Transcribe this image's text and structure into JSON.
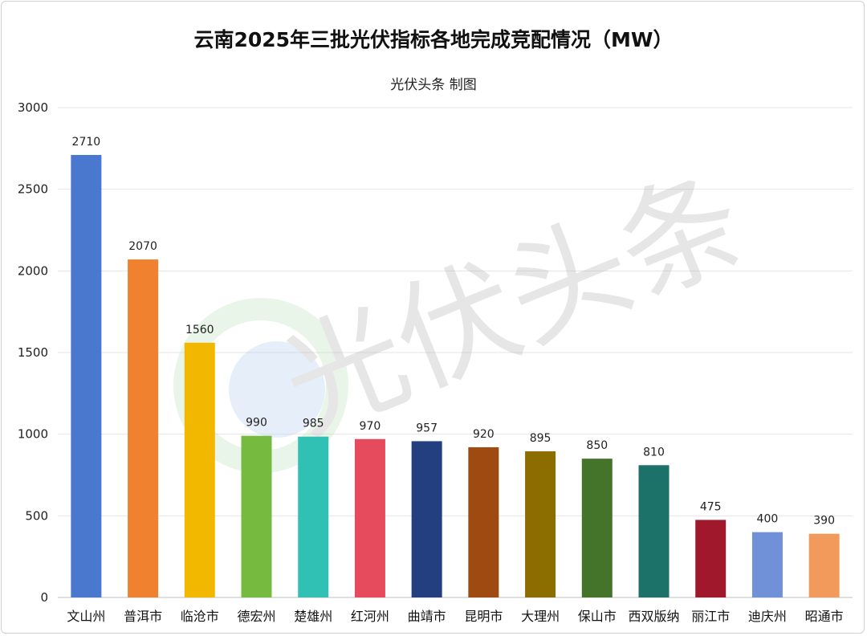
{
  "chart_data": {
    "type": "bar",
    "title": "云南2025年三批光伏指标各地完成竞配情况（MW）",
    "subtitle": "光伏头条 制图",
    "xlabel": "",
    "ylabel": "",
    "ylim": [
      0,
      3000
    ],
    "yticks": [
      0,
      500,
      1000,
      1500,
      2000,
      2500,
      3000
    ],
    "grid": true,
    "legend": "none",
    "categories": [
      "文山州",
      "普洱市",
      "临沧市",
      "德宏州",
      "楚雄州",
      "红河州",
      "曲靖市",
      "昆明市",
      "大理州",
      "保山市",
      "西双版纳",
      "丽江市",
      "迪庆州",
      "昭通市"
    ],
    "values": [
      2710,
      2070,
      1560,
      990,
      985,
      970,
      957,
      920,
      895,
      850,
      810,
      475,
      400,
      390
    ],
    "colors": [
      "#4a78cf",
      "#f0812e",
      "#f2b800",
      "#76bb40",
      "#30c0b4",
      "#e64a5d",
      "#233f80",
      "#9e4a10",
      "#8c6d00",
      "#44732a",
      "#1c7268",
      "#a0182b",
      "#7091d8",
      "#f29a5c"
    ]
  },
  "watermark": "光伏头条"
}
